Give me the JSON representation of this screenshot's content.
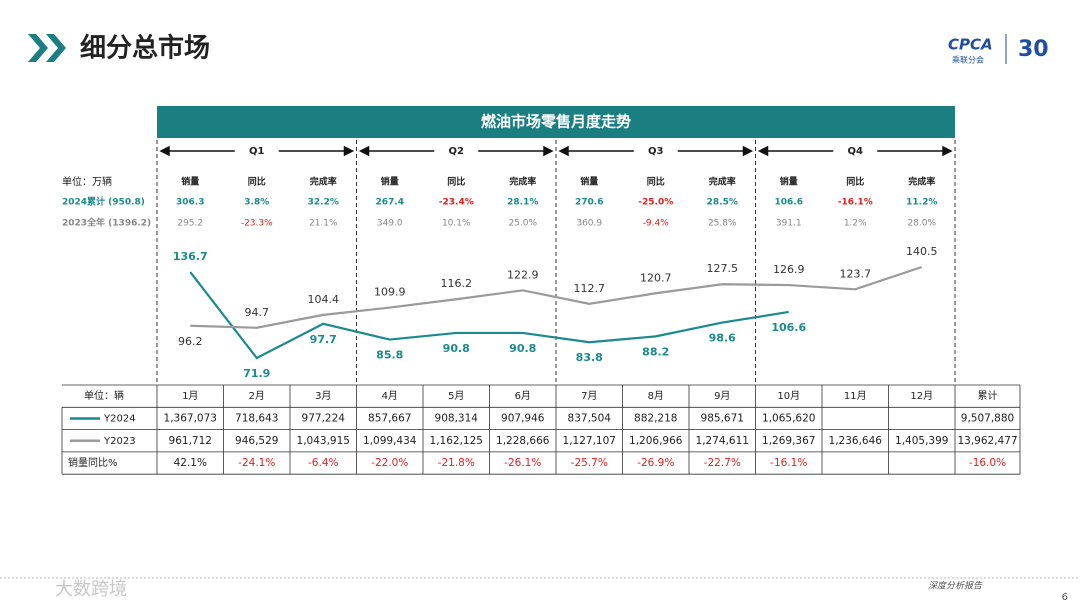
{
  "header": {
    "title": "细分总市场",
    "logo": "CPCA",
    "logo_sub": "乘联分会",
    "anniversary": "30"
  },
  "chart_data": {
    "type": "line",
    "title": "燃油市场零售月度走势",
    "categories": [
      "1月",
      "2月",
      "3月",
      "4月",
      "5月",
      "6月",
      "7月",
      "8月",
      "9月",
      "10月",
      "11月",
      "12月"
    ],
    "series": [
      {
        "name": "Y2024",
        "color": "#1b8a8c",
        "values": [
          136.7,
          71.9,
          97.7,
          85.8,
          90.8,
          90.8,
          83.8,
          88.2,
          98.6,
          106.6,
          null,
          null
        ]
      },
      {
        "name": "Y2023",
        "color": "#9a9a9a",
        "values": [
          96.2,
          94.7,
          104.4,
          109.9,
          116.2,
          122.9,
          112.7,
          120.7,
          127.5,
          126.9,
          123.7,
          140.5
        ]
      }
    ]
  },
  "quarters": [
    "Q1",
    "Q2",
    "Q3",
    "Q4"
  ],
  "summary": {
    "unit": "单位：万辆",
    "columns": [
      "销量",
      "同比",
      "完成率"
    ],
    "rows": [
      {
        "label": "2024累计 (950.8)",
        "cells": [
          "306.3",
          "3.8%",
          "32.2%",
          "267.4",
          "-23.4%",
          "28.1%",
          "270.6",
          "-25.0%",
          "28.5%",
          "106.6",
          "-16.1%",
          "11.2%"
        ]
      },
      {
        "label": "2023全年 (1396.2)",
        "cells": [
          "295.2",
          "-23.3%",
          "21.1%",
          "349.0",
          "10.1%",
          "25.0%",
          "360.9",
          "-9.4%",
          "25.8%",
          "391.1",
          "1.2%",
          "28.0%"
        ]
      }
    ]
  },
  "table": {
    "unit": "单位：辆",
    "total_header": "累计",
    "rows": [
      {
        "cells": [
          "1,367,073",
          "718,643",
          "977,224",
          "857,667",
          "908,314",
          "907,946",
          "837,504",
          "882,218",
          "985,671",
          "1,065,620",
          null,
          null,
          "9,507,880"
        ]
      },
      {
        "cells": [
          "961,712",
          "946,529",
          "1,043,915",
          "1,099,434",
          "1,162,125",
          "1,228,666",
          "1,127,107",
          "1,206,966",
          "1,274,611",
          "1,269,367",
          "1,236,646",
          "1,405,399",
          "13,962,477"
        ]
      },
      {
        "label": "销量同比%",
        "cells": [
          "42.1%",
          "-24.1%",
          "-6.4%",
          "-22.0%",
          "-21.8%",
          "-26.1%",
          "-25.7%",
          "-26.9%",
          "-22.7%",
          "-16.1%",
          null,
          null,
          "-16.0%"
        ]
      }
    ]
  },
  "footer": {
    "report": "深度分析报告",
    "page": "6",
    "watermark": "大数跨境"
  }
}
